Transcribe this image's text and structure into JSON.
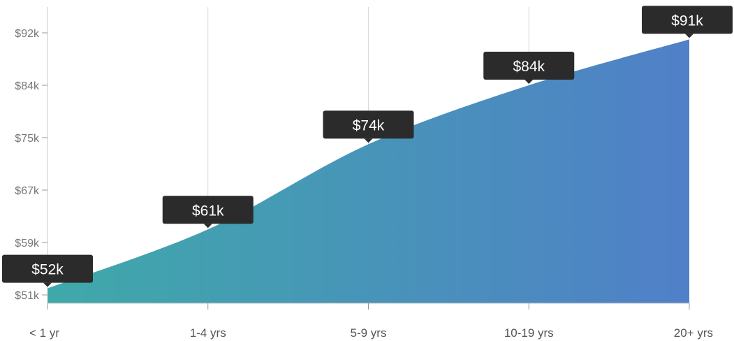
{
  "chart_data": {
    "type": "area",
    "categories": [
      "< 1 yr",
      "1-4 yrs",
      "5-9 yrs",
      "10-19 yrs",
      "20+ yrs"
    ],
    "values": [
      52000,
      61000,
      74000,
      84000,
      91000
    ],
    "data_labels": [
      "$52k",
      "$61k",
      "$74k",
      "$84k",
      "$91k"
    ],
    "yticks": [
      {
        "value": 51000,
        "label": "$51k"
      },
      {
        "value": 59000,
        "label": "$59k"
      },
      {
        "value": 67000,
        "label": "$67k"
      },
      {
        "value": 75000,
        "label": "$75k"
      },
      {
        "value": 84000,
        "label": "$84k"
      },
      {
        "value": 92000,
        "label": "$92k"
      }
    ],
    "ylim": [
      50000,
      94000
    ],
    "grid": {
      "vertical": true,
      "horizontal": false
    },
    "title": "",
    "xlabel": "",
    "ylabel": "",
    "colors": {
      "gradient_start": "#3fa9a9",
      "gradient_end": "#5080c8",
      "label_background": "#2b2b2b",
      "label_text": "#ffffff"
    }
  }
}
